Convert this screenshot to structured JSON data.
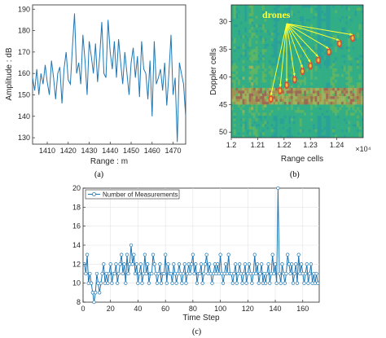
{
  "chart_data": [
    {
      "panel": "a",
      "type": "line",
      "xlabel": "Range : m",
      "ylabel": "Amplitude : dB",
      "xlim": [
        1403,
        1476
      ],
      "ylim": [
        127,
        192
      ],
      "xticks": [
        1410,
        1420,
        1430,
        1440,
        1450,
        1460,
        1470
      ],
      "yticks": [
        130,
        140,
        150,
        160,
        170,
        180,
        190
      ],
      "color": "#1f77b4",
      "series": [
        {
          "x": [
            1403,
            1404,
            1405,
            1406,
            1407,
            1408,
            1409,
            1410,
            1411,
            1412,
            1413,
            1414,
            1415,
            1416,
            1417,
            1418,
            1419,
            1420,
            1421,
            1422,
            1423,
            1424,
            1425,
            1426,
            1427,
            1428,
            1429,
            1430,
            1431,
            1432,
            1433,
            1434,
            1435,
            1436,
            1437,
            1438,
            1439,
            1440,
            1441,
            1442,
            1443,
            1444,
            1445,
            1446,
            1447,
            1448,
            1449,
            1450,
            1451,
            1452,
            1453,
            1454,
            1455,
            1456,
            1457,
            1458,
            1459,
            1460,
            1461,
            1462,
            1463,
            1464,
            1465,
            1466,
            1467,
            1468,
            1469,
            1470,
            1471,
            1472,
            1473,
            1474,
            1475,
            1476
          ],
          "y": [
            158,
            152,
            162,
            150,
            160,
            155,
            164,
            156,
            150,
            166,
            158,
            148,
            160,
            163,
            146,
            162,
            170,
            157,
            155,
            172,
            188,
            160,
            165,
            155,
            178,
            166,
            150,
            175,
            168,
            160,
            174,
            156,
            168,
            184,
            160,
            158,
            185,
            170,
            162,
            175,
            158,
            176,
            165,
            155,
            170,
            160,
            150,
            165,
            172,
            158,
            168,
            149,
            175,
            162,
            160,
            148,
            166,
            140,
            175,
            155,
            158,
            162,
            152,
            165,
            145,
            160,
            178,
            150,
            158,
            128,
            165,
            160,
            155,
            140
          ]
        }
      ]
    },
    {
      "panel": "b",
      "type": "heatmap",
      "xlabel": "Range cells",
      "ylabel": "Doppler cells",
      "xlim": [
        12000,
        12500
      ],
      "ylim": [
        51,
        27
      ],
      "xticks": [
        1.2,
        1.21,
        1.22,
        1.23,
        1.24
      ],
      "x_tick_labels": [
        "1.2",
        "1.21",
        "1.22",
        "1.23",
        "1.24"
      ],
      "x_multiplier": "×10⁴",
      "yticks": [
        30,
        35,
        40,
        45,
        50
      ],
      "annotation": "drones",
      "drone_positions": [
        {
          "x": 12150,
          "y": 44
        },
        {
          "x": 12185,
          "y": 42.5
        },
        {
          "x": 12210,
          "y": 41.5
        },
        {
          "x": 12240,
          "y": 40.5
        },
        {
          "x": 12270,
          "y": 39
        },
        {
          "x": 12300,
          "y": 38
        },
        {
          "x": 12330,
          "y": 37
        },
        {
          "x": 12370,
          "y": 35.5
        },
        {
          "x": 12410,
          "y": 34
        },
        {
          "x": 12460,
          "y": 33
        }
      ],
      "palette": [
        "#2aa198",
        "#39b87a",
        "#7fc243",
        "#e8c23a",
        "#f08a24",
        "#e8452a"
      ]
    },
    {
      "panel": "c",
      "type": "line",
      "xlabel": "Time Step",
      "ylabel": "",
      "xlim": [
        0,
        172
      ],
      "ylim": [
        8,
        20
      ],
      "xticks": [
        0,
        20,
        40,
        60,
        80,
        100,
        120,
        140,
        160
      ],
      "yticks": [
        8,
        10,
        12,
        14,
        16,
        18,
        20
      ],
      "color": "#1f77b4",
      "grid": true,
      "legend": "top-left",
      "series": [
        {
          "name": "Number of Measurements",
          "x": [
            1,
            2,
            3,
            4,
            5,
            6,
            7,
            8,
            9,
            10,
            11,
            12,
            13,
            14,
            15,
            16,
            17,
            18,
            19,
            20,
            21,
            22,
            23,
            24,
            25,
            26,
            27,
            28,
            29,
            30,
            31,
            32,
            33,
            34,
            35,
            36,
            37,
            38,
            39,
            40,
            41,
            42,
            43,
            44,
            45,
            46,
            47,
            48,
            49,
            50,
            51,
            52,
            53,
            54,
            55,
            56,
            57,
            58,
            59,
            60,
            61,
            62,
            63,
            64,
            65,
            66,
            67,
            68,
            69,
            70,
            71,
            72,
            73,
            74,
            75,
            76,
            77,
            78,
            79,
            80,
            81,
            82,
            83,
            84,
            85,
            86,
            87,
            88,
            89,
            90,
            91,
            92,
            93,
            94,
            95,
            96,
            97,
            98,
            99,
            100,
            101,
            102,
            103,
            104,
            105,
            106,
            107,
            108,
            109,
            110,
            111,
            112,
            113,
            114,
            115,
            116,
            117,
            118,
            119,
            120,
            121,
            122,
            123,
            124,
            125,
            126,
            127,
            128,
            129,
            130,
            131,
            132,
            133,
            134,
            135,
            136,
            137,
            138,
            139,
            140,
            141,
            142,
            143,
            144,
            145,
            146,
            147,
            148,
            149,
            150,
            151,
            152,
            153,
            154,
            155,
            156,
            157,
            158,
            159,
            160,
            161,
            162,
            163,
            164,
            165,
            166,
            167,
            168,
            169,
            170,
            171
          ],
          "y": [
            12,
            11,
            13,
            10,
            11,
            10,
            9,
            8,
            9,
            11,
            10,
            9,
            10,
            11,
            12,
            10,
            11,
            10,
            11,
            12,
            10,
            11,
            11,
            12,
            10,
            11,
            12,
            13,
            11,
            12,
            10,
            13,
            11,
            12,
            14,
            12,
            13,
            11,
            12,
            10,
            11,
            12,
            10,
            11,
            13,
            11,
            12,
            10,
            11,
            11,
            13,
            12,
            11,
            10,
            11,
            12,
            10,
            11,
            11,
            13,
            10,
            12,
            11,
            11,
            10,
            12,
            11,
            10,
            11,
            12,
            11,
            10,
            11,
            12,
            10,
            11,
            12,
            11,
            12,
            13,
            11,
            12,
            10,
            11,
            11,
            12,
            10,
            11,
            12,
            13,
            11,
            12,
            11,
            10,
            11,
            12,
            11,
            12,
            11,
            13,
            11,
            10,
            11,
            12,
            11,
            13,
            11,
            11,
            10,
            11,
            12,
            10,
            11,
            12,
            11,
            10,
            11,
            12,
            10,
            11,
            12,
            11,
            10,
            11,
            13,
            11,
            12,
            10,
            11,
            12,
            10,
            11,
            10,
            11,
            12,
            10,
            11,
            13,
            11,
            12,
            10,
            20,
            11,
            10,
            12,
            11,
            10,
            11,
            13,
            12,
            11,
            12,
            10,
            11,
            12,
            10,
            13,
            11,
            12,
            11,
            10,
            11,
            12,
            10,
            11,
            12,
            10,
            11,
            10,
            11,
            10
          ]
        }
      ]
    }
  ],
  "panel_labels": {
    "a": "(a)",
    "b": "(b)",
    "c": "(c)"
  },
  "annotation_color": "#ffff33"
}
